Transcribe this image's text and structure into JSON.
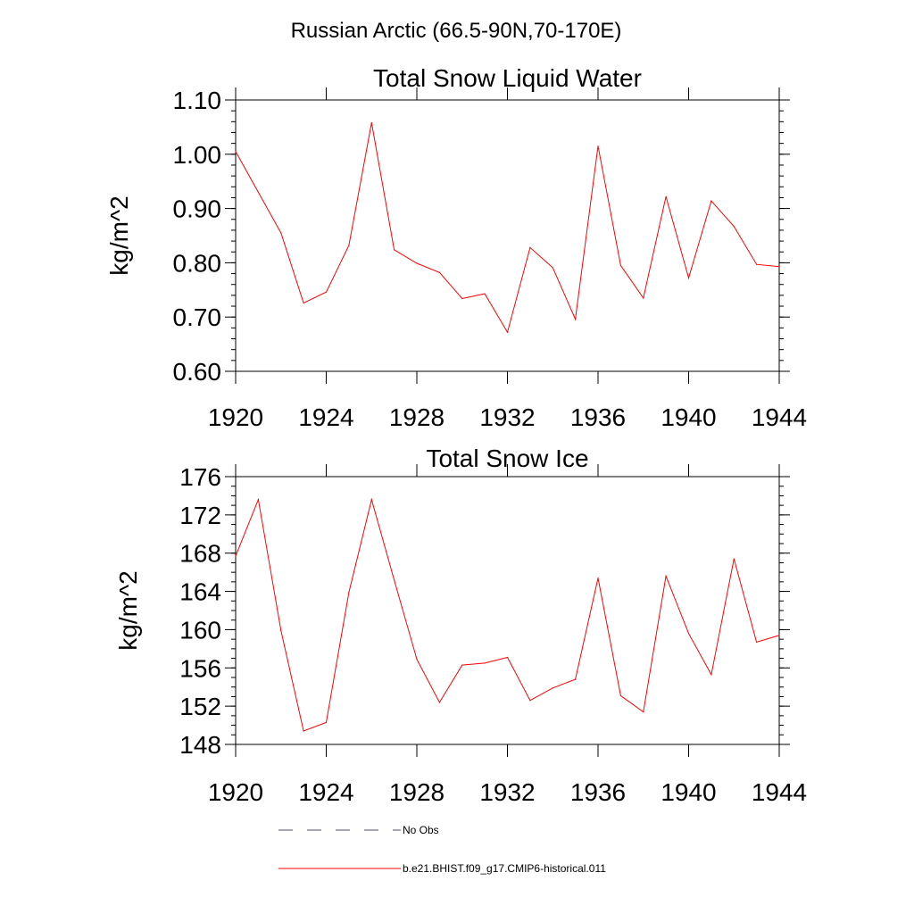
{
  "header": {
    "region_title": "Russian Arctic (66.5-90N,70-170E)"
  },
  "legend": {
    "entries": [
      {
        "label": "No Obs",
        "color": "#4a4a6a",
        "style": "dashed"
      },
      {
        "label": "b.e21.BHIST.f09_g17.CMIP6-historical.011",
        "color": "#ff0000",
        "style": "solid"
      }
    ]
  },
  "chart_data": [
    {
      "type": "line",
      "title": "Total Snow Liquid Water",
      "xlabel": "",
      "ylabel": "kg/m^2",
      "xlim": [
        1920,
        1944
      ],
      "ylim": [
        0.6,
        1.1
      ],
      "x_ticks": [
        1920,
        1924,
        1928,
        1932,
        1936,
        1940,
        1944
      ],
      "x_tick_labels": [
        "1920",
        "1924",
        "1928",
        "1932",
        "1936",
        "1940",
        "1944"
      ],
      "y_ticks": [
        0.6,
        0.7,
        0.8,
        0.9,
        1.0,
        1.1
      ],
      "y_tick_labels": [
        "0.60",
        "0.70",
        "0.80",
        "0.90",
        "1.00",
        "1.10"
      ],
      "y_minor_step": 0.02,
      "grid": false,
      "series": [
        {
          "color": "#ff0000",
          "x": [
            1920,
            1921,
            1922,
            1923,
            1924,
            1925,
            1926,
            1927,
            1928,
            1929,
            1930,
            1931,
            1932,
            1933,
            1934,
            1935,
            1936,
            1937,
            1938,
            1939,
            1940,
            1941,
            1942,
            1943,
            1944
          ],
          "values": [
            1.005,
            0.93,
            0.855,
            0.726,
            0.746,
            0.832,
            1.058,
            0.824,
            0.799,
            0.782,
            0.734,
            0.743,
            0.672,
            0.828,
            0.791,
            0.696,
            1.015,
            0.795,
            0.735,
            0.922,
            0.772,
            0.914,
            0.867,
            0.797,
            0.793
          ]
        }
      ]
    },
    {
      "type": "line",
      "title": "Total Snow Ice",
      "xlabel": "",
      "ylabel": "kg/m^2",
      "xlim": [
        1920,
        1944
      ],
      "ylim": [
        148,
        176
      ],
      "x_ticks": [
        1920,
        1924,
        1928,
        1932,
        1936,
        1940,
        1944
      ],
      "x_tick_labels": [
        "1920",
        "1924",
        "1928",
        "1932",
        "1936",
        "1940",
        "1944"
      ],
      "y_ticks": [
        148,
        152,
        156,
        160,
        164,
        168,
        172,
        176
      ],
      "y_tick_labels": [
        "148",
        "152",
        "156",
        "160",
        "164",
        "168",
        "172",
        "176"
      ],
      "y_minor_step": 1,
      "grid": false,
      "series": [
        {
          "color": "#ff0000",
          "x": [
            1920,
            1921,
            1922,
            1923,
            1924,
            1925,
            1926,
            1927,
            1928,
            1929,
            1930,
            1931,
            1932,
            1933,
            1934,
            1935,
            1936,
            1937,
            1938,
            1939,
            1940,
            1941,
            1942,
            1943,
            1944
          ],
          "values": [
            167.7,
            173.6,
            159.9,
            149.4,
            150.3,
            163.9,
            173.6,
            165.2,
            156.9,
            152.4,
            156.3,
            156.5,
            157.1,
            152.6,
            153.9,
            154.8,
            165.4,
            153.1,
            151.4,
            165.6,
            159.6,
            155.3,
            167.4,
            158.7,
            159.4
          ]
        }
      ]
    }
  ]
}
